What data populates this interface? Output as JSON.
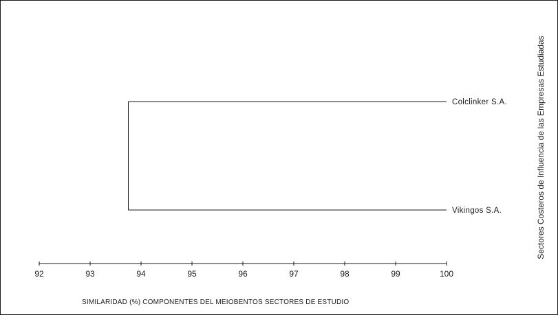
{
  "chart_data": {
    "type": "dendrogram",
    "leaves": [
      {
        "label": "Colclinker S.A."
      },
      {
        "label": "Vikingos S.A."
      }
    ],
    "merges": [
      {
        "members": [
          "Colclinker S.A.",
          "Vikingos S.A."
        ],
        "similarity": 93.75
      }
    ],
    "x_ticks": [
      "92",
      "93",
      "94",
      "95",
      "96",
      "97",
      "98",
      "99",
      "100"
    ],
    "xlim": [
      92,
      100
    ],
    "xlabel": "SIMILARIDAD  (%)   COMPONENTES DEL  MEIOBENTOS SECTORES DE ESTUDIO",
    "ylabel": "Sectores Costeros de Influencia de las Empresas Estudiadas",
    "grid": false,
    "line_color": "#1a1a1a"
  }
}
